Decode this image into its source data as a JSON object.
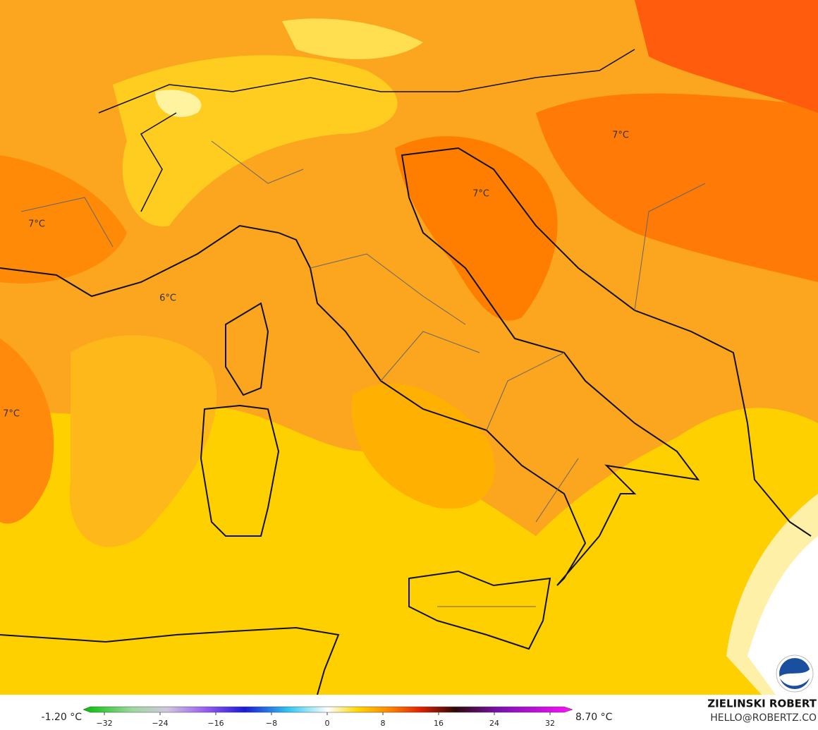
{
  "map": {
    "labels": [
      "7°C",
      "7°C",
      "7°C",
      "6°C",
      "7°C"
    ],
    "colorbar": {
      "min_label": "-1.20 °C",
      "max_label": "8.70 °C",
      "ticks": [
        {
          "value": -32,
          "label": "−32"
        },
        {
          "value": -24,
          "label": "−24"
        },
        {
          "value": -16,
          "label": "−16"
        },
        {
          "value": -8,
          "label": "−8"
        },
        0,
        8,
        16,
        24,
        32
      ]
    },
    "credit": {
      "name": "ZIELINSKI ROBERT",
      "email": "HELLO@ROBERTZ.CO"
    }
  }
}
